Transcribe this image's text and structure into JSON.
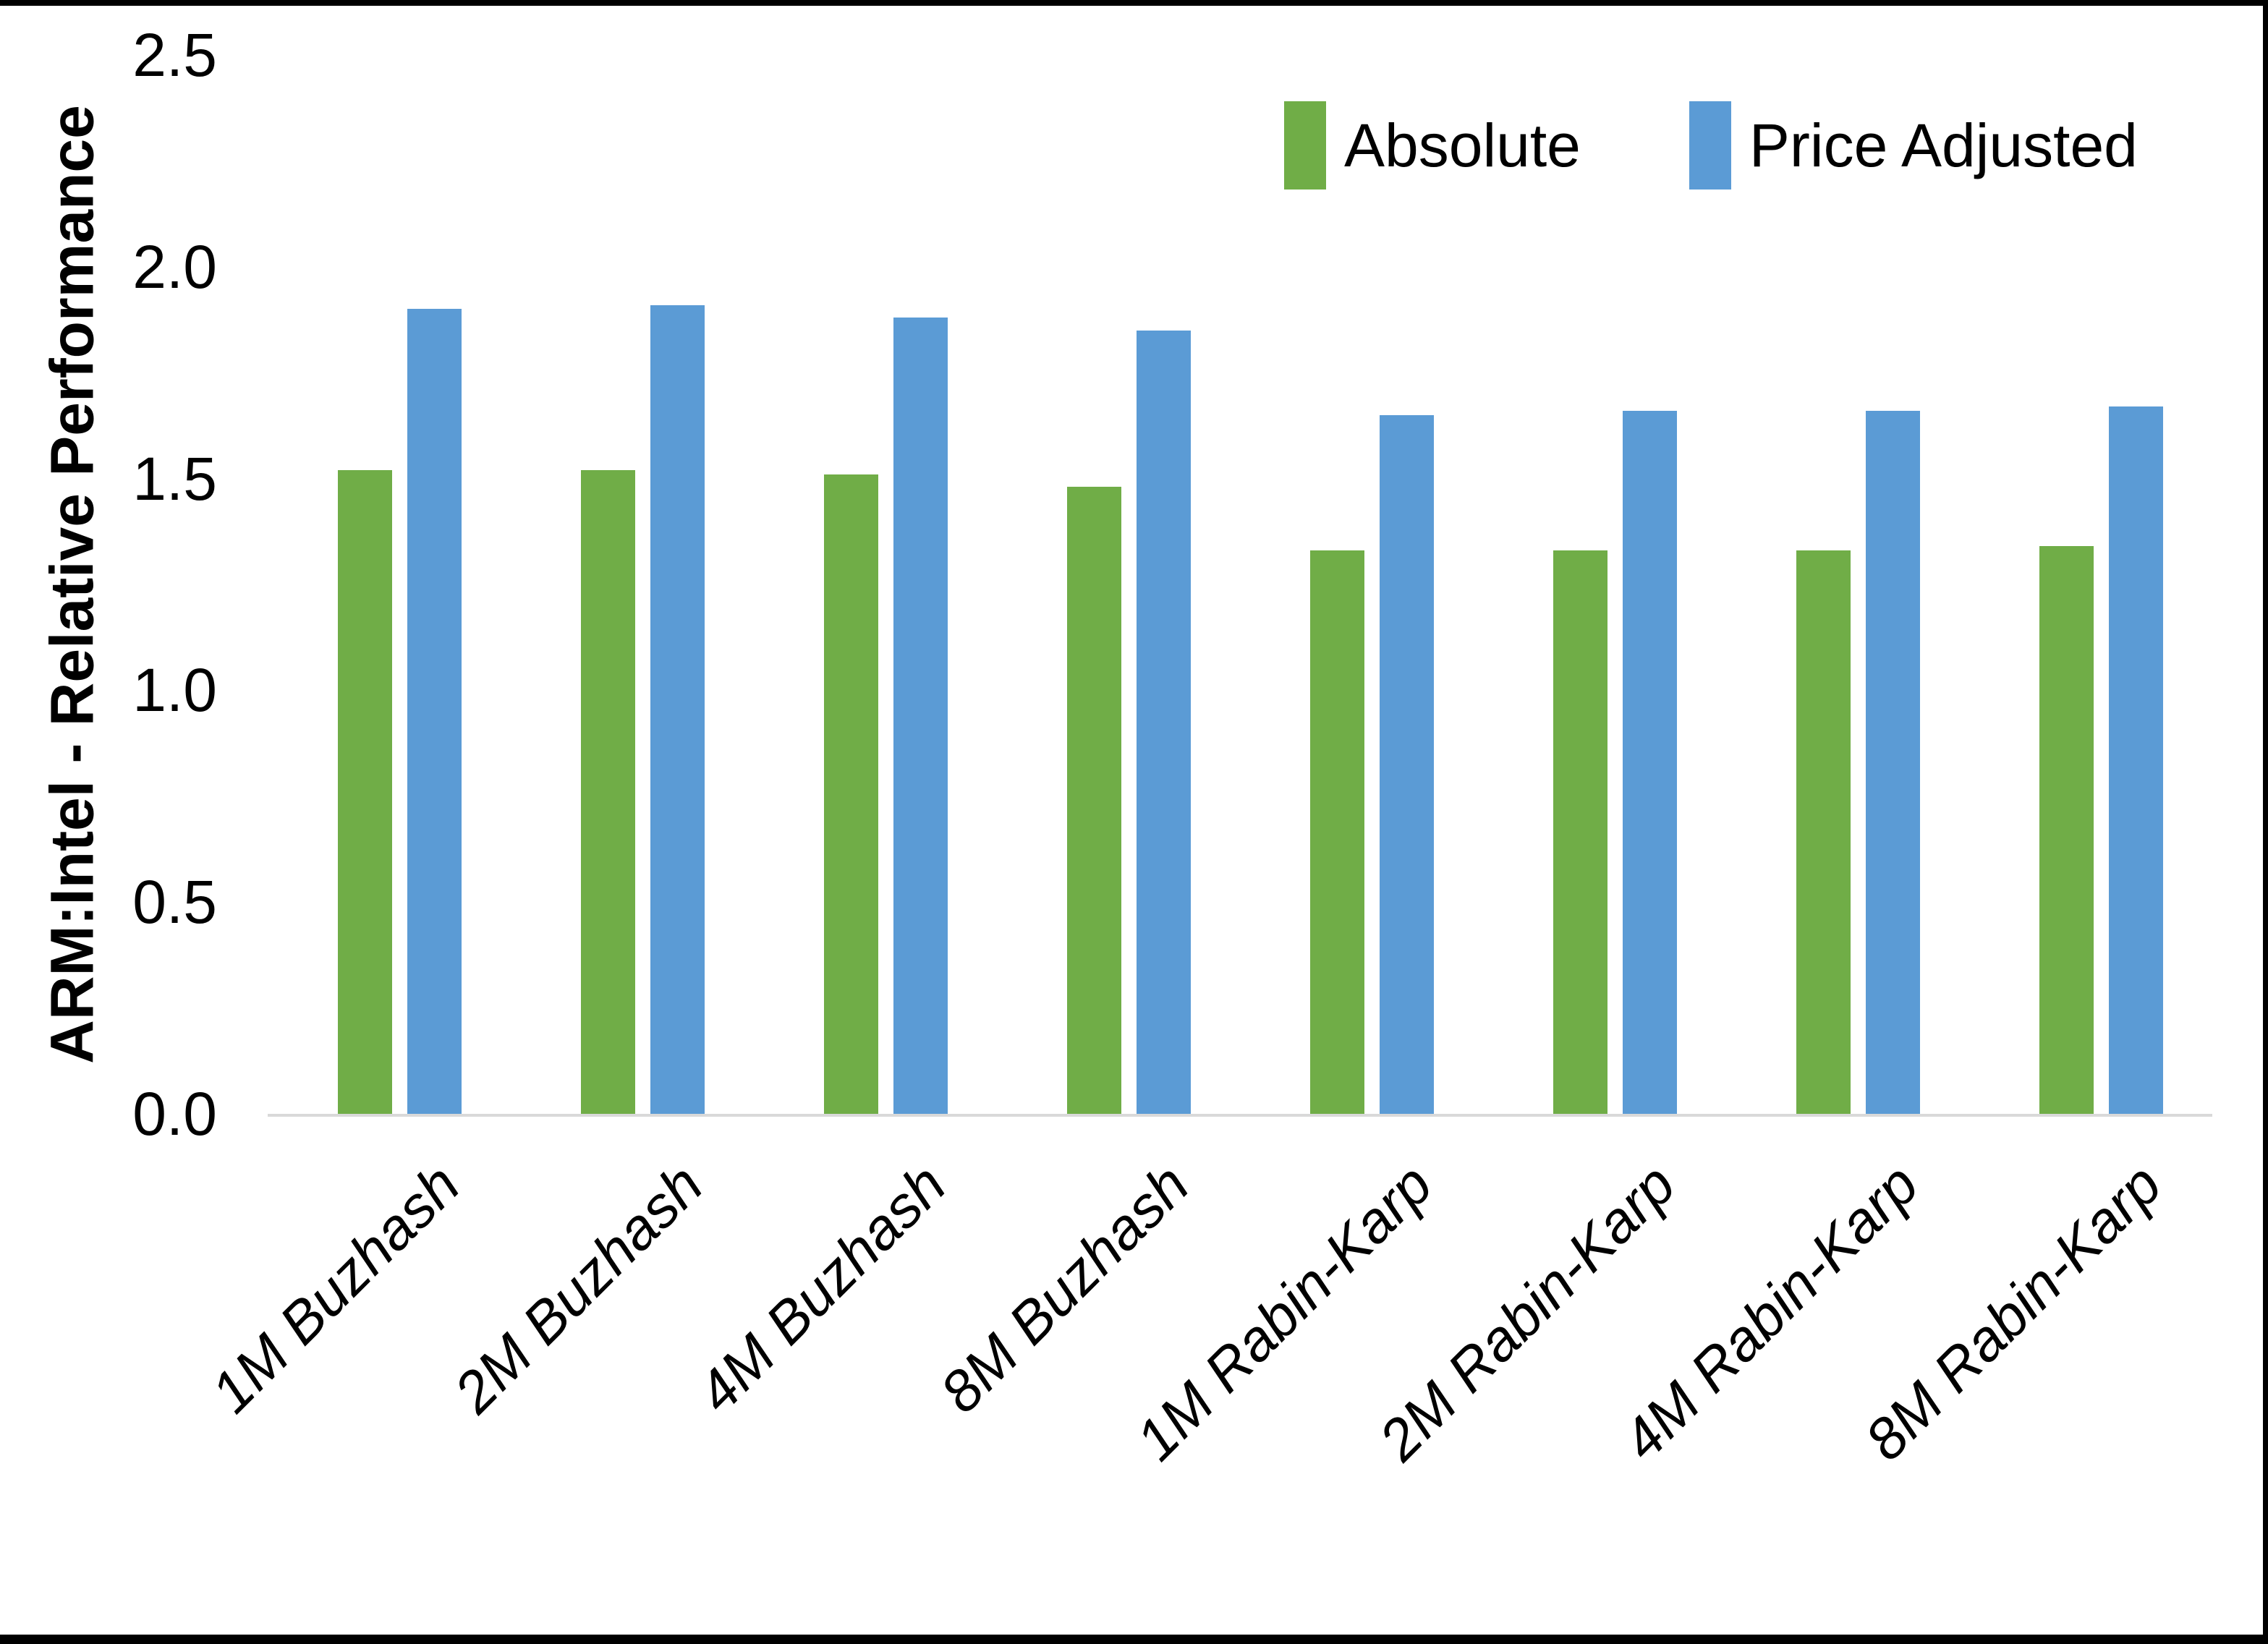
{
  "chart_data": {
    "type": "bar",
    "title": "",
    "xlabel": "",
    "ylabel": "ARM:Intel - Relative Performance",
    "ylim": [
      0,
      2.5
    ],
    "ytick_labels": [
      "2.5",
      "2.0",
      "1.5",
      "1.0",
      "0.5",
      "0.0"
    ],
    "grid": false,
    "legend_position": "top-right",
    "categories": [
      "1M Buzhash",
      "2M Buzhash",
      "4M Buzhash",
      "8M Buzhash",
      "1M Rabin-Karp",
      "2M Rabin-Karp",
      "4M Rabin-Karp",
      "8M Rabin-Karp"
    ],
    "series": [
      {
        "name": "Absolute",
        "color": "#70AD47",
        "values": [
          1.52,
          1.52,
          1.51,
          1.48,
          1.33,
          1.33,
          1.33,
          1.34
        ]
      },
      {
        "name": "Price Adjusted",
        "color": "#5B9BD5",
        "values": [
          1.9,
          1.91,
          1.88,
          1.85,
          1.65,
          1.66,
          1.66,
          1.67
        ]
      }
    ]
  }
}
